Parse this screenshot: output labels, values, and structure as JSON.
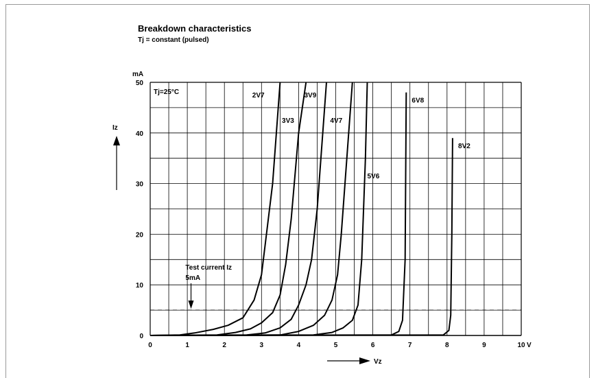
{
  "title": "Breakdown characteristics",
  "subtitle": "Tj = constant (pulsed)",
  "chart_data": {
    "type": "line",
    "title": "Breakdown characteristics",
    "subtitle": "Tj = constant (pulsed)",
    "xlabel": "Vz",
    "x_unit": "V",
    "ylabel": "Iz",
    "y_unit": "mA",
    "xlim": [
      0,
      10
    ],
    "ylim": [
      0,
      50
    ],
    "x_ticks": [
      "0",
      "1",
      "2",
      "3",
      "4",
      "5",
      "6",
      "7",
      "8",
      "9",
      "10"
    ],
    "y_ticks": [
      "0",
      "10",
      "20",
      "30",
      "40",
      "50"
    ],
    "grid": true,
    "annotation_temp": "Tj=25°C",
    "test_current": {
      "label_line1": "Test current Iz",
      "label_line2": "5mA",
      "value": 5,
      "x": 1.1
    },
    "series": [
      {
        "name": "2V7",
        "label_at": [
          2.75,
          47
        ],
        "points": [
          [
            0,
            0
          ],
          [
            0.8,
            0.1
          ],
          [
            1.2,
            0.5
          ],
          [
            1.7,
            1.2
          ],
          [
            2.1,
            2
          ],
          [
            2.5,
            3.5
          ],
          [
            2.8,
            7
          ],
          [
            3.0,
            12
          ],
          [
            3.1,
            18
          ],
          [
            3.3,
            30
          ],
          [
            3.5,
            50
          ]
        ]
      },
      {
        "name": "3V3",
        "label_at": [
          3.55,
          42
        ],
        "points": [
          [
            0,
            0
          ],
          [
            1.8,
            0.1
          ],
          [
            2.3,
            0.6
          ],
          [
            2.7,
            1.3
          ],
          [
            3.0,
            2.5
          ],
          [
            3.3,
            4.5
          ],
          [
            3.5,
            8
          ],
          [
            3.65,
            14
          ],
          [
            3.8,
            23
          ],
          [
            4.0,
            40
          ],
          [
            4.2,
            50
          ]
        ]
      },
      {
        "name": "3V9",
        "label_at": [
          4.15,
          47
        ],
        "points": [
          [
            0,
            0
          ],
          [
            2.6,
            0.1
          ],
          [
            3.1,
            0.5
          ],
          [
            3.5,
            1.5
          ],
          [
            3.8,
            3.2
          ],
          [
            4.0,
            6
          ],
          [
            4.2,
            10
          ],
          [
            4.35,
            15
          ],
          [
            4.5,
            25
          ],
          [
            4.7,
            45
          ],
          [
            4.75,
            50
          ]
        ]
      },
      {
        "name": "4V7",
        "label_at": [
          4.85,
          42
        ],
        "points": [
          [
            0,
            0
          ],
          [
            3.5,
            0.1
          ],
          [
            4.0,
            0.8
          ],
          [
            4.4,
            2
          ],
          [
            4.7,
            4
          ],
          [
            4.9,
            7
          ],
          [
            5.05,
            12
          ],
          [
            5.15,
            20
          ],
          [
            5.3,
            35
          ],
          [
            5.45,
            50
          ]
        ]
      },
      {
        "name": "5V6",
        "label_at": [
          5.85,
          31
        ],
        "points": [
          [
            0,
            0
          ],
          [
            4.4,
            0.1
          ],
          [
            4.9,
            0.6
          ],
          [
            5.2,
            1.5
          ],
          [
            5.45,
            3
          ],
          [
            5.6,
            6
          ],
          [
            5.7,
            15
          ],
          [
            5.8,
            35
          ],
          [
            5.85,
            50
          ]
        ]
      },
      {
        "name": "6V8",
        "label_at": [
          7.05,
          46
        ],
        "points": [
          [
            0,
            0
          ],
          [
            6.5,
            0.1
          ],
          [
            6.7,
            0.8
          ],
          [
            6.8,
            3
          ],
          [
            6.87,
            15
          ],
          [
            6.9,
            48
          ]
        ]
      },
      {
        "name": "8V2",
        "label_at": [
          8.3,
          37
        ],
        "points": [
          [
            0,
            0
          ],
          [
            7.9,
            0.1
          ],
          [
            8.05,
            1
          ],
          [
            8.1,
            4
          ],
          [
            8.13,
            20
          ],
          [
            8.15,
            39
          ]
        ]
      }
    ],
    "colors": {
      "curve": "#000000",
      "grid": "#000000"
    }
  }
}
